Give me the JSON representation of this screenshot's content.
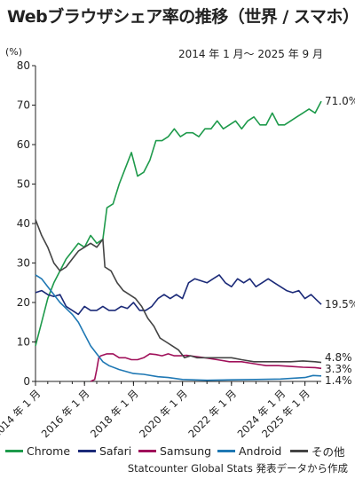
{
  "title": "Webブラウザシェア率の推移（世界 / スマホ）",
  "subtitle": "2014 年 1 月〜 2025 年 9 月",
  "source": "Statcounter Global Stats 発表データから作成",
  "chart_data": {
    "type": "line",
    "title": "Webブラウザシェア率の推移（世界 / スマホ）",
    "subtitle": "2014 年 1 月〜 2025 年 9 月",
    "yunit": "(%)",
    "ylim": [
      0,
      80
    ],
    "yticks": [
      0,
      10,
      20,
      30,
      40,
      50,
      60,
      70,
      80
    ],
    "xlim": [
      "2014-01",
      "2025-09"
    ],
    "xticks": [
      {
        "x": "2014-01",
        "label": "2014 年 1 月"
      },
      {
        "x": "2016-01",
        "label": "2016 年 1 月"
      },
      {
        "x": "2018-01",
        "label": "2018 年 1 月"
      },
      {
        "x": "2020-01",
        "label": "2020 年 1 月"
      },
      {
        "x": "2022-01",
        "label": "2022 年 1 月"
      },
      {
        "x": "2024-01",
        "label": "2024 年 1 月"
      },
      {
        "x": "2025-01",
        "label": "2025 年 1 月"
      }
    ],
    "grid": false,
    "legend_position": "bottom",
    "series": [
      {
        "name": "Chrome",
        "color": "#1e9a4b",
        "end_label": "71.0%",
        "points": [
          [
            "2014-01",
            9
          ],
          [
            "2014-04",
            15
          ],
          [
            "2014-07",
            21
          ],
          [
            "2014-10",
            25
          ],
          [
            "2015-01",
            28
          ],
          [
            "2015-04",
            31
          ],
          [
            "2015-07",
            33
          ],
          [
            "2015-10",
            35
          ],
          [
            "2016-01",
            34
          ],
          [
            "2016-04",
            37
          ],
          [
            "2016-07",
            35
          ],
          [
            "2016-10",
            36
          ],
          [
            "2016-12",
            44
          ],
          [
            "2017-03",
            45
          ],
          [
            "2017-06",
            50
          ],
          [
            "2017-09",
            54
          ],
          [
            "2017-12",
            58
          ],
          [
            "2018-03",
            52
          ],
          [
            "2018-06",
            53
          ],
          [
            "2018-09",
            56
          ],
          [
            "2018-12",
            61
          ],
          [
            "2019-03",
            61
          ],
          [
            "2019-06",
            62
          ],
          [
            "2019-09",
            64
          ],
          [
            "2019-12",
            62
          ],
          [
            "2020-03",
            63
          ],
          [
            "2020-06",
            63
          ],
          [
            "2020-09",
            62
          ],
          [
            "2020-12",
            64
          ],
          [
            "2021-03",
            64
          ],
          [
            "2021-06",
            66
          ],
          [
            "2021-09",
            64
          ],
          [
            "2021-12",
            65
          ],
          [
            "2022-03",
            66
          ],
          [
            "2022-06",
            64
          ],
          [
            "2022-09",
            66
          ],
          [
            "2022-12",
            67
          ],
          [
            "2023-03",
            65
          ],
          [
            "2023-06",
            65
          ],
          [
            "2023-09",
            68
          ],
          [
            "2023-12",
            65
          ],
          [
            "2024-03",
            65
          ],
          [
            "2024-06",
            66
          ],
          [
            "2024-09",
            67
          ],
          [
            "2024-12",
            68
          ],
          [
            "2025-03",
            69
          ],
          [
            "2025-06",
            68
          ],
          [
            "2025-09",
            71.0
          ]
        ]
      },
      {
        "name": "Safari",
        "color": "#1b2a78",
        "end_label": "19.5%",
        "points": [
          [
            "2014-01",
            22.5
          ],
          [
            "2014-04",
            23
          ],
          [
            "2014-07",
            22
          ],
          [
            "2014-10",
            21.5
          ],
          [
            "2015-01",
            22
          ],
          [
            "2015-04",
            19
          ],
          [
            "2015-07",
            18
          ],
          [
            "2015-10",
            17
          ],
          [
            "2016-01",
            19
          ],
          [
            "2016-04",
            18
          ],
          [
            "2016-07",
            18
          ],
          [
            "2016-10",
            19
          ],
          [
            "2017-01",
            18
          ],
          [
            "2017-04",
            18
          ],
          [
            "2017-07",
            19
          ],
          [
            "2017-10",
            18.5
          ],
          [
            "2018-01",
            20
          ],
          [
            "2018-04",
            18
          ],
          [
            "2018-07",
            18
          ],
          [
            "2018-10",
            19
          ],
          [
            "2019-01",
            21
          ],
          [
            "2019-04",
            22
          ],
          [
            "2019-07",
            21
          ],
          [
            "2019-10",
            22
          ],
          [
            "2020-01",
            21
          ],
          [
            "2020-04",
            25
          ],
          [
            "2020-07",
            26
          ],
          [
            "2020-10",
            25.5
          ],
          [
            "2021-01",
            25
          ],
          [
            "2021-04",
            26
          ],
          [
            "2021-07",
            27
          ],
          [
            "2021-10",
            25
          ],
          [
            "2022-01",
            24
          ],
          [
            "2022-04",
            26
          ],
          [
            "2022-07",
            25
          ],
          [
            "2022-10",
            26
          ],
          [
            "2023-01",
            24
          ],
          [
            "2023-04",
            25
          ],
          [
            "2023-07",
            26
          ],
          [
            "2023-10",
            25
          ],
          [
            "2024-01",
            24
          ],
          [
            "2024-04",
            23
          ],
          [
            "2024-07",
            22.5
          ],
          [
            "2024-10",
            23
          ],
          [
            "2025-01",
            21
          ],
          [
            "2025-04",
            22
          ],
          [
            "2025-07",
            20.5
          ],
          [
            "2025-09",
            19.5
          ]
        ]
      },
      {
        "name": "Samsung",
        "color": "#a0105a",
        "end_label": "3.3%",
        "points": [
          [
            "2016-04",
            0
          ],
          [
            "2016-06",
            0.5
          ],
          [
            "2016-07",
            3
          ],
          [
            "2016-08",
            6
          ],
          [
            "2016-09",
            6.5
          ],
          [
            "2016-12",
            7
          ],
          [
            "2017-03",
            7
          ],
          [
            "2017-06",
            6
          ],
          [
            "2017-09",
            6
          ],
          [
            "2017-12",
            5.5
          ],
          [
            "2018-03",
            5.5
          ],
          [
            "2018-06",
            6
          ],
          [
            "2018-09",
            7
          ],
          [
            "2018-12",
            6.8
          ],
          [
            "2019-03",
            6.5
          ],
          [
            "2019-06",
            7
          ],
          [
            "2019-09",
            6.5
          ],
          [
            "2019-12",
            6.5
          ],
          [
            "2020-03",
            6.6
          ],
          [
            "2020-06",
            6.4
          ],
          [
            "2020-09",
            6.2
          ],
          [
            "2020-12",
            6
          ],
          [
            "2021-06",
            5.5
          ],
          [
            "2021-12",
            5
          ],
          [
            "2022-06",
            5
          ],
          [
            "2022-12",
            4.5
          ],
          [
            "2023-06",
            4
          ],
          [
            "2023-12",
            4
          ],
          [
            "2024-06",
            3.8
          ],
          [
            "2024-12",
            3.6
          ],
          [
            "2025-06",
            3.5
          ],
          [
            "2025-09",
            3.3
          ]
        ]
      },
      {
        "name": "Android",
        "color": "#1f78b4",
        "end_label": "1.4%",
        "points": [
          [
            "2014-01",
            27
          ],
          [
            "2014-04",
            26
          ],
          [
            "2014-07",
            24
          ],
          [
            "2014-10",
            22
          ],
          [
            "2015-01",
            20
          ],
          [
            "2015-04",
            18.5
          ],
          [
            "2015-07",
            17
          ],
          [
            "2015-10",
            15
          ],
          [
            "2016-01",
            12
          ],
          [
            "2016-04",
            9
          ],
          [
            "2016-07",
            7
          ],
          [
            "2016-10",
            5
          ],
          [
            "2017-01",
            4
          ],
          [
            "2017-06",
            3
          ],
          [
            "2018-01",
            2
          ],
          [
            "2018-06",
            1.8
          ],
          [
            "2019-01",
            1.2
          ],
          [
            "2019-06",
            1
          ],
          [
            "2020-01",
            0.5
          ],
          [
            "2020-06",
            0.4
          ],
          [
            "2021-01",
            0.3
          ],
          [
            "2022-01",
            0.4
          ],
          [
            "2023-01",
            0.5
          ],
          [
            "2024-01",
            0.6
          ],
          [
            "2025-01",
            1
          ],
          [
            "2025-05",
            1.5
          ],
          [
            "2025-09",
            1.4
          ]
        ]
      },
      {
        "name": "その他",
        "color": "#444444",
        "end_label": "4.8%",
        "points": [
          [
            "2014-01",
            41
          ],
          [
            "2014-04",
            37
          ],
          [
            "2014-07",
            34
          ],
          [
            "2014-10",
            30
          ],
          [
            "2015-01",
            28
          ],
          [
            "2015-04",
            29
          ],
          [
            "2015-07",
            31
          ],
          [
            "2015-10",
            33
          ],
          [
            "2016-01",
            34
          ],
          [
            "2016-04",
            35
          ],
          [
            "2016-07",
            34
          ],
          [
            "2016-10",
            36
          ],
          [
            "2016-11",
            29
          ],
          [
            "2017-02",
            28
          ],
          [
            "2017-05",
            25
          ],
          [
            "2017-08",
            23
          ],
          [
            "2017-11",
            22
          ],
          [
            "2018-02",
            21
          ],
          [
            "2018-05",
            19
          ],
          [
            "2018-08",
            16
          ],
          [
            "2018-11",
            14
          ],
          [
            "2019-02",
            11
          ],
          [
            "2019-05",
            10
          ],
          [
            "2019-08",
            9
          ],
          [
            "2019-11",
            8
          ],
          [
            "2020-02",
            6
          ],
          [
            "2020-05",
            6.5
          ],
          [
            "2020-08",
            6
          ],
          [
            "2020-11",
            6
          ],
          [
            "2021-06",
            6
          ],
          [
            "2022-01",
            6
          ],
          [
            "2022-06",
            5.5
          ],
          [
            "2022-12",
            5
          ],
          [
            "2023-06",
            5
          ],
          [
            "2023-12",
            5
          ],
          [
            "2024-06",
            5
          ],
          [
            "2024-12",
            5.2
          ],
          [
            "2025-06",
            5
          ],
          [
            "2025-09",
            4.8
          ]
        ]
      }
    ]
  }
}
